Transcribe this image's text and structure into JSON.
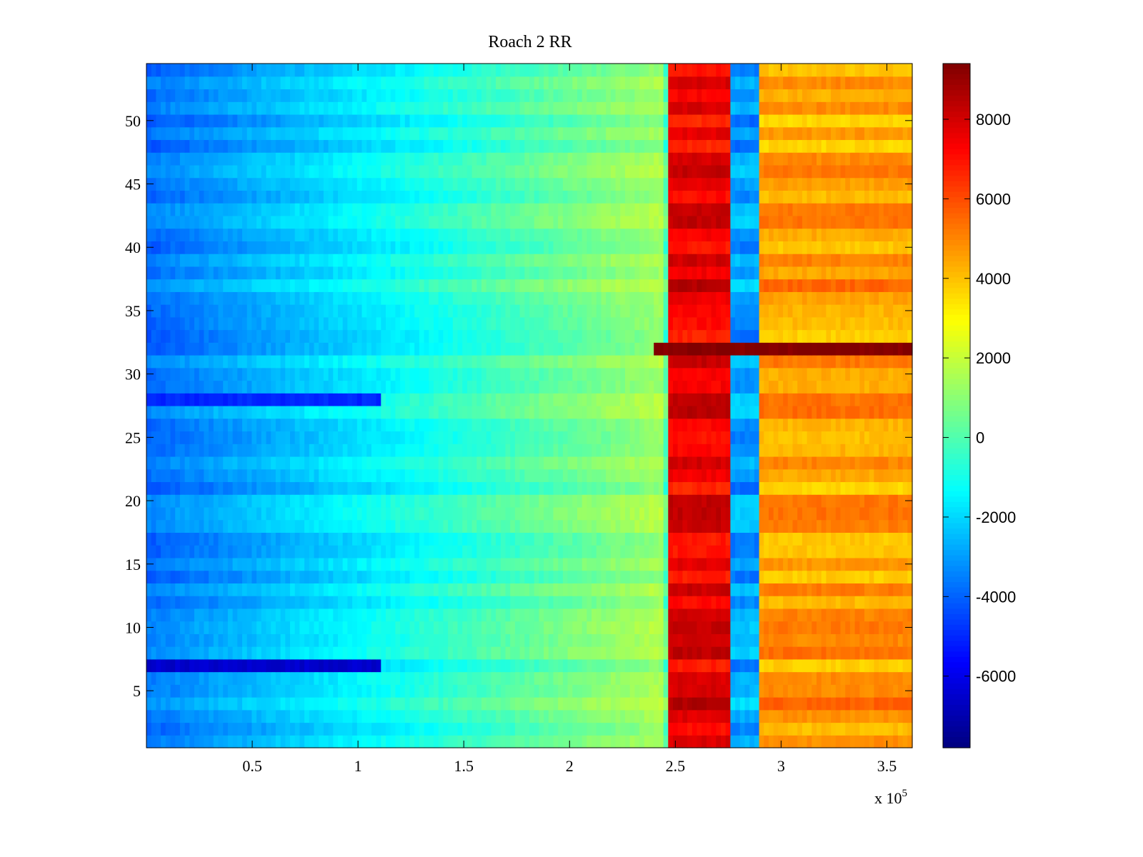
{
  "chart_data": {
    "type": "heatmap",
    "title": "Roach 2 RR",
    "xlabel": "",
    "ylabel": "",
    "x_range": [
      0,
      362000
    ],
    "y_range": [
      0.5,
      54.5
    ],
    "x_ticks": [
      50000,
      100000,
      150000,
      200000,
      250000,
      300000,
      350000
    ],
    "x_tick_labels": [
      "0.5",
      "1",
      "1.5",
      "2",
      "2.5",
      "3",
      "3.5"
    ],
    "x_exponent_label": "x 10",
    "x_exponent_power": "5",
    "y_ticks": [
      5,
      10,
      15,
      20,
      25,
      30,
      35,
      40,
      45,
      50
    ],
    "y_tick_labels": [
      "5",
      "10",
      "15",
      "20",
      "25",
      "30",
      "35",
      "40",
      "45",
      "50"
    ],
    "colormap": "jet",
    "color_limits": [
      -7800,
      9400
    ],
    "colorbar_ticks": [
      8000,
      6000,
      4000,
      2000,
      0,
      -2000,
      -4000,
      -6000
    ],
    "colorbar_tick_labels": [
      "8000",
      "6000",
      "4000",
      "2000",
      "0",
      "-2000",
      "-4000",
      "-6000"
    ],
    "rows": 54,
    "regions": [
      {
        "x_start": 0,
        "x_end": 60000,
        "approx_value": -3500
      },
      {
        "x_start": 60000,
        "x_end": 140000,
        "approx_value": -2000
      },
      {
        "x_start": 140000,
        "x_end": 200000,
        "approx_value": 0
      },
      {
        "x_start": 200000,
        "x_end": 245000,
        "approx_value": 1000
      },
      {
        "x_start": 246000,
        "x_end": 277000,
        "approx_value": 7500
      },
      {
        "x_start": 277000,
        "x_end": 289000,
        "approx_value": -3000
      },
      {
        "x_start": 289000,
        "x_end": 362000,
        "approx_value": 4500
      }
    ],
    "highlighted_rows": [
      {
        "row": 32,
        "note": "saturated band from x 2.4e5 to 3.6e5",
        "approx_value": 9400
      },
      {
        "row": 7,
        "note": "deep blue band at low x",
        "approx_value": -6500
      },
      {
        "row": 28,
        "note": "dark blue band at low x",
        "approx_value": -5000
      }
    ]
  }
}
